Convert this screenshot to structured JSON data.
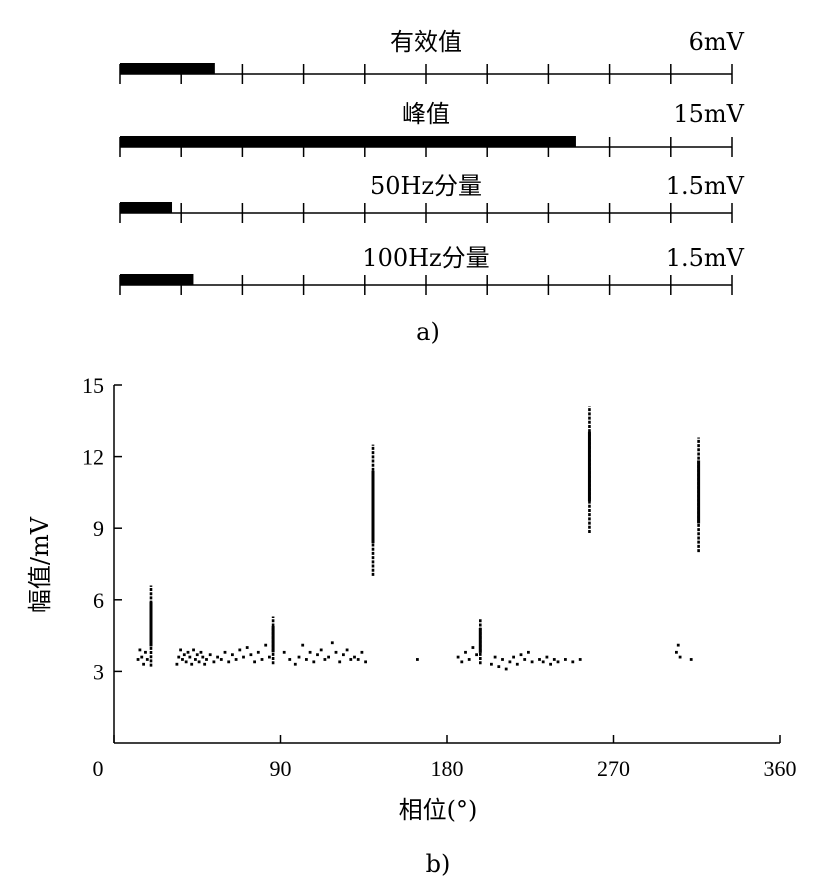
{
  "chart_data": [
    {
      "type": "bar",
      "panel_label": "a)",
      "meters": [
        {
          "label": "有效值",
          "full_scale": "6mV",
          "fraction": 0.155
        },
        {
          "label": "峰值",
          "full_scale": "15mV",
          "fraction": 0.745
        },
        {
          "label": "50Hz分量",
          "full_scale": "1.5mV",
          "fraction": 0.085
        },
        {
          "label": "100Hz分量",
          "full_scale": "1.5mV",
          "fraction": 0.12
        }
      ],
      "ticks_per_meter": 10
    },
    {
      "type": "scatter",
      "panel_label": "b)",
      "xlabel": "相位(°)",
      "ylabel": "幅值/mV",
      "xlim": [
        0,
        360
      ],
      "ylim": [
        0,
        15
      ],
      "xticks": [
        0,
        90,
        180,
        270,
        360
      ],
      "yticks": [
        3,
        6,
        9,
        12,
        15
      ],
      "grid": false,
      "vertical_clusters": [
        {
          "x": 20,
          "y_min": 3.2,
          "y_max": 6.6
        },
        {
          "x": 86,
          "y_min": 3.3,
          "y_max": 5.3
        },
        {
          "x": 140,
          "y_min": 7.0,
          "y_max": 12.5
        },
        {
          "x": 198,
          "y_min": 3.3,
          "y_max": 5.2
        },
        {
          "x": 257,
          "y_min": 8.8,
          "y_max": 14.1
        },
        {
          "x": 316,
          "y_min": 8.0,
          "y_max": 12.8
        }
      ],
      "points": [
        [
          13,
          3.5
        ],
        [
          14,
          3.9
        ],
        [
          15,
          3.6
        ],
        [
          16,
          3.3
        ],
        [
          17,
          3.8
        ],
        [
          18,
          3.5
        ],
        [
          34,
          3.3
        ],
        [
          35,
          3.6
        ],
        [
          36,
          3.9
        ],
        [
          37,
          3.5
        ],
        [
          38,
          3.7
        ],
        [
          39,
          3.4
        ],
        [
          40,
          3.8
        ],
        [
          41,
          3.6
        ],
        [
          42,
          3.3
        ],
        [
          43,
          3.9
        ],
        [
          44,
          3.5
        ],
        [
          45,
          3.7
        ],
        [
          46,
          3.4
        ],
        [
          47,
          3.8
        ],
        [
          48,
          3.6
        ],
        [
          49,
          3.3
        ],
        [
          50,
          3.5
        ],
        [
          52,
          3.7
        ],
        [
          54,
          3.4
        ],
        [
          56,
          3.6
        ],
        [
          58,
          3.5
        ],
        [
          60,
          3.8
        ],
        [
          62,
          3.4
        ],
        [
          64,
          3.7
        ],
        [
          66,
          3.5
        ],
        [
          68,
          3.9
        ],
        [
          70,
          3.6
        ],
        [
          72,
          4.0
        ],
        [
          74,
          3.7
        ],
        [
          76,
          3.4
        ],
        [
          78,
          3.8
        ],
        [
          80,
          3.5
        ],
        [
          82,
          4.1
        ],
        [
          84,
          3.6
        ],
        [
          92,
          3.8
        ],
        [
          95,
          3.5
        ],
        [
          98,
          3.3
        ],
        [
          100,
          3.6
        ],
        [
          102,
          4.1
        ],
        [
          104,
          3.5
        ],
        [
          106,
          3.8
        ],
        [
          108,
          3.4
        ],
        [
          110,
          3.7
        ],
        [
          112,
          3.9
        ],
        [
          114,
          3.5
        ],
        [
          116,
          3.6
        ],
        [
          118,
          4.2
        ],
        [
          120,
          3.8
        ],
        [
          122,
          3.4
        ],
        [
          124,
          3.7
        ],
        [
          126,
          3.9
        ],
        [
          128,
          3.5
        ],
        [
          130,
          3.6
        ],
        [
          132,
          3.5
        ],
        [
          134,
          3.8
        ],
        [
          136,
          3.4
        ],
        [
          164,
          3.5
        ],
        [
          186,
          3.6
        ],
        [
          188,
          3.4
        ],
        [
          190,
          3.8
        ],
        [
          192,
          3.5
        ],
        [
          194,
          4.0
        ],
        [
          196,
          3.7
        ],
        [
          204,
          3.3
        ],
        [
          206,
          3.6
        ],
        [
          208,
          3.2
        ],
        [
          210,
          3.5
        ],
        [
          212,
          3.1
        ],
        [
          214,
          3.4
        ],
        [
          216,
          3.6
        ],
        [
          218,
          3.3
        ],
        [
          220,
          3.7
        ],
        [
          222,
          3.5
        ],
        [
          224,
          3.8
        ],
        [
          226,
          3.4
        ],
        [
          230,
          3.5
        ],
        [
          232,
          3.4
        ],
        [
          234,
          3.6
        ],
        [
          236,
          3.3
        ],
        [
          238,
          3.5
        ],
        [
          240,
          3.4
        ],
        [
          244,
          3.5
        ],
        [
          248,
          3.4
        ],
        [
          252,
          3.5
        ],
        [
          304,
          3.8
        ],
        [
          305,
          4.1
        ],
        [
          306,
          3.6
        ],
        [
          312,
          3.5
        ]
      ]
    }
  ]
}
